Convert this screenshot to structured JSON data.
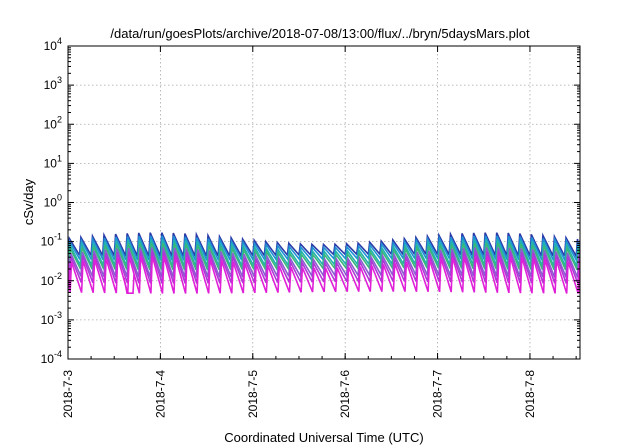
{
  "chart_data": {
    "type": "line",
    "title": "/data/run/goesPlots/archive/2018-07-08/13:00/flux/../bryn/5daysMars.plot",
    "xlabel": "Coordinated Universal Time (UTC)",
    "ylabel": "cSv/day",
    "yscale": "log",
    "ylim": [
      0.0001,
      10000
    ],
    "y_ticks": [
      {
        "base": "10",
        "exp": "-4"
      },
      {
        "base": "10",
        "exp": "-3"
      },
      {
        "base": "10",
        "exp": "-2"
      },
      {
        "base": "10",
        "exp": "-1"
      },
      {
        "base": "10",
        "exp": "0"
      },
      {
        "base": "10",
        "exp": "1"
      },
      {
        "base": "10",
        "exp": "2"
      },
      {
        "base": "10",
        "exp": "3"
      },
      {
        "base": "10",
        "exp": "4"
      }
    ],
    "xlim": [
      "2018-07-03T00:00",
      "2018-07-08T13:00"
    ],
    "x_ticks": [
      "2018-7-3",
      "2018-7-4",
      "2018-7-5",
      "2018-7-6",
      "2018-7-7",
      "2018-7-8"
    ],
    "grid": true,
    "legend": "none",
    "sawtooth_period_hours": 3,
    "series": [
      {
        "color": "#2a3ba8",
        "peak": 0.12,
        "trough": 0.045
      },
      {
        "color": "#1f8fd6",
        "peak": 0.1,
        "trough": 0.035
      },
      {
        "color": "#22b2b0",
        "peak": 0.08,
        "trough": 0.025
      },
      {
        "color": "#3ab87a",
        "peak": 0.065,
        "trough": 0.02
      },
      {
        "color": "#8a5fd0",
        "peak": 0.05,
        "trough": 0.013
      },
      {
        "color": "#b236d6",
        "peak": 0.04,
        "trough": 0.009
      },
      {
        "color": "#e020d8",
        "peak": 0.03,
        "trough": 0.005
      }
    ],
    "anomalies": [
      {
        "x": "2018-07-03T15:20",
        "note": "dip",
        "value": 0.0048
      }
    ]
  }
}
